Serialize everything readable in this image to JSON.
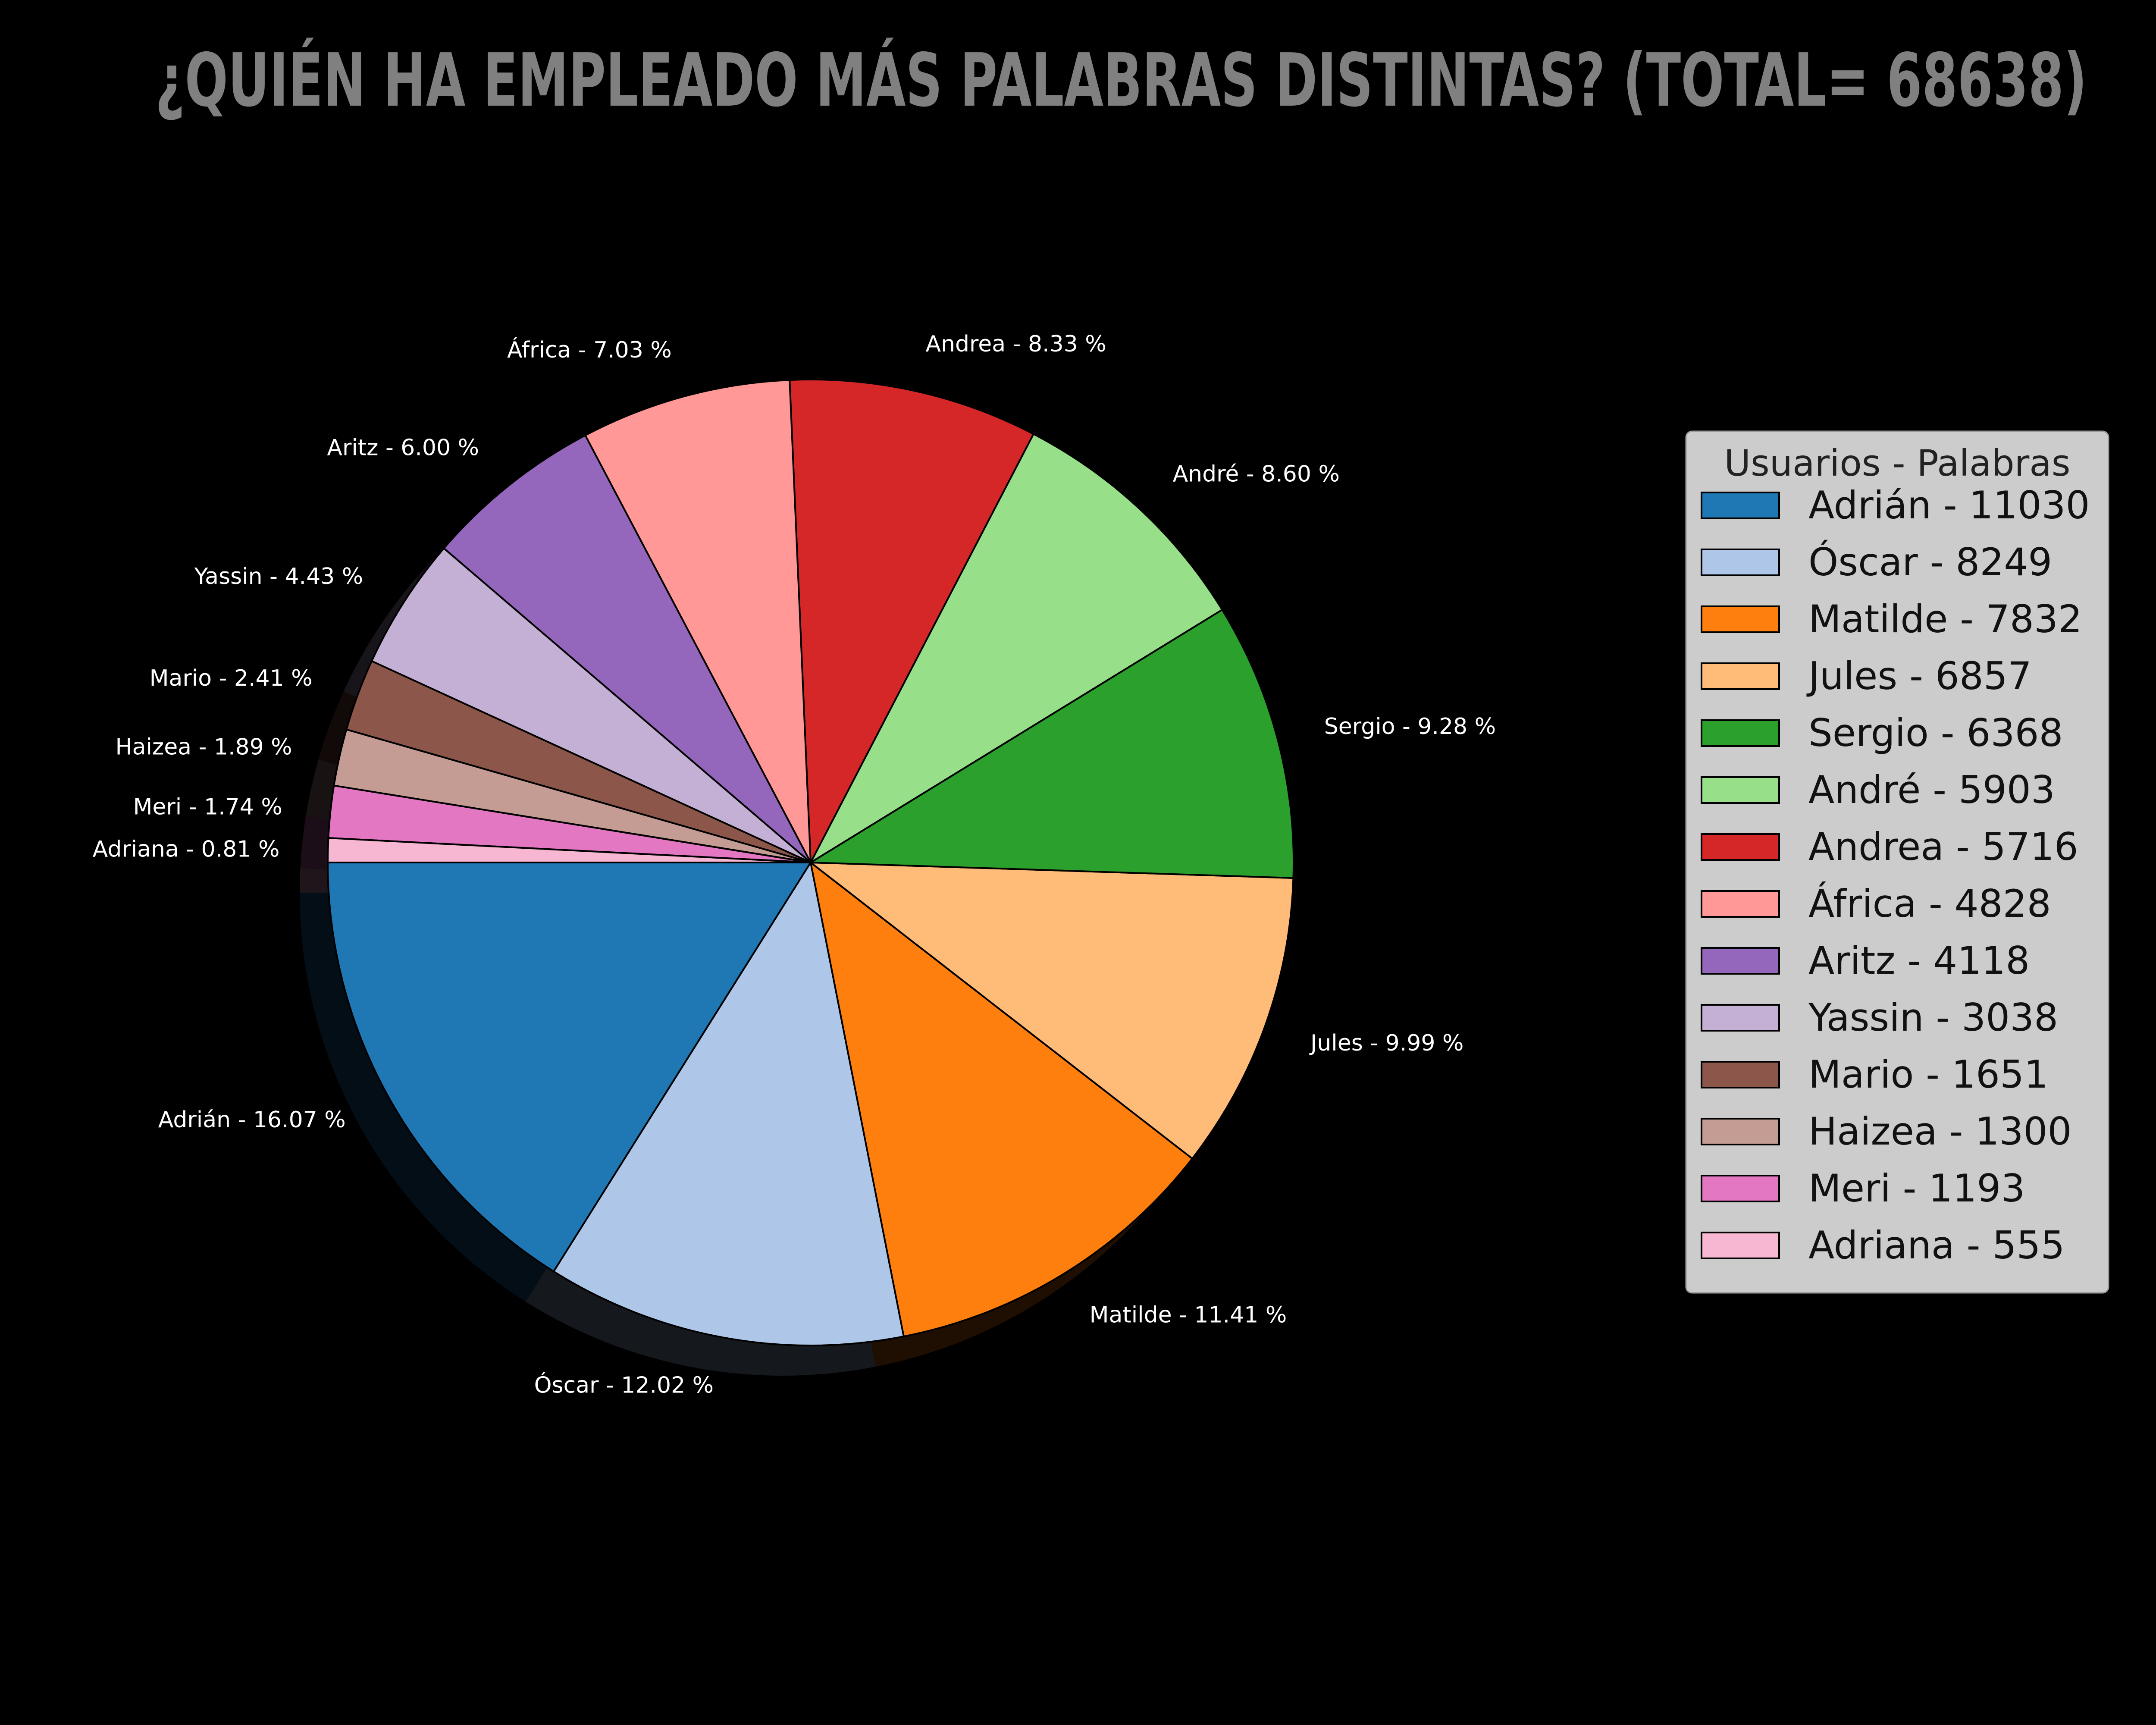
{
  "chart_data": {
    "type": "pie",
    "title": "¿QUIÉN HA EMPLEADO MÁS PALABRAS DISTINTAS? (TOTAL= 68638)",
    "background": "#000000",
    "title_color": "#808080",
    "legend": {
      "title": "Usuarios - Palabras",
      "placement": "right",
      "background": "#cccccc"
    },
    "slices": [
      {
        "name": "Adrián",
        "value": 11030,
        "label": "Adrián - 16.07 %",
        "legend_label": "Adrián - 11030",
        "color": "#1f77b4"
      },
      {
        "name": "Óscar",
        "value": 8249,
        "label": "Óscar - 12.02 %",
        "legend_label": "Óscar - 8249",
        "color": "#aec7e8"
      },
      {
        "name": "Matilde",
        "value": 7832,
        "label": "Matilde - 11.41 %",
        "legend_label": "Matilde - 7832",
        "color": "#ff7f0e"
      },
      {
        "name": "Jules",
        "value": 6857,
        "label": "Jules - 9.99 %",
        "legend_label": "Jules - 6857",
        "color": "#ffbb78"
      },
      {
        "name": "Sergio",
        "value": 6368,
        "label": "Sergio - 9.28 %",
        "legend_label": "Sergio - 6368",
        "color": "#2ca02c"
      },
      {
        "name": "André",
        "value": 5903,
        "label": "André - 8.60 %",
        "legend_label": "André - 5903",
        "color": "#98df8a"
      },
      {
        "name": "Andrea",
        "value": 5716,
        "label": "Andrea - 8.33 %",
        "legend_label": "Andrea - 5716",
        "color": "#d62728"
      },
      {
        "name": "África",
        "value": 4828,
        "label": "África - 7.03 %",
        "legend_label": "África - 4828",
        "color": "#ff9896"
      },
      {
        "name": "Aritz",
        "value": 4118,
        "label": "Aritz - 6.00 %",
        "legend_label": "Aritz - 4118",
        "color": "#9467bd"
      },
      {
        "name": "Yassin",
        "value": 3038,
        "label": "Yassin - 4.43 %",
        "legend_label": "Yassin - 3038",
        "color": "#c5b0d5"
      },
      {
        "name": "Mario",
        "value": 1651,
        "label": "Mario - 2.41 %",
        "legend_label": "Mario - 1651",
        "color": "#8c564b"
      },
      {
        "name": "Haizea",
        "value": 1300,
        "label": "Haizea - 1.89 %",
        "legend_label": "Haizea - 1300",
        "color": "#c49c94"
      },
      {
        "name": "Meri",
        "value": 1193,
        "label": "Meri - 1.74 %",
        "legend_label": "Meri - 1193",
        "color": "#e377c2"
      },
      {
        "name": "Adriana",
        "value": 555,
        "label": "Adriana - 0.81 %",
        "legend_label": "Adriana - 555",
        "color": "#f7b6d2"
      }
    ]
  }
}
